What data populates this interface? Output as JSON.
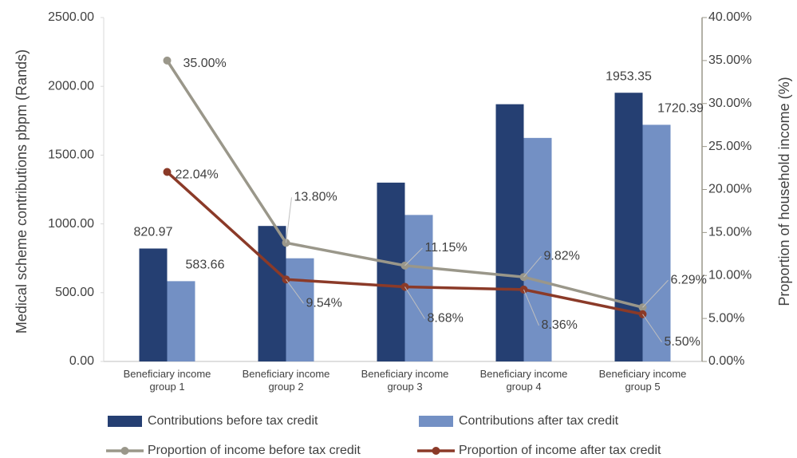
{
  "chart_data": {
    "type": "bar_line",
    "categories": [
      "Beneficiary income group 1",
      "Beneficiary income group 2",
      "Beneficiary income group 3",
      "Beneficiary income group 4",
      "Beneficiary income group 5"
    ],
    "y_label": "Medical scheme contributions pbpm (Rands)",
    "y2_label": "Proportion of household income (%)",
    "ylim": [
      0,
      2500
    ],
    "yticks": [
      {
        "value": 0,
        "label": "0.00"
      },
      {
        "value": 500,
        "label": "500.00"
      },
      {
        "value": 1000,
        "label": "1000.00"
      },
      {
        "value": 1500,
        "label": "1500.00"
      },
      {
        "value": 2000,
        "label": "2000.00"
      },
      {
        "value": 2500,
        "label": "2500.00"
      }
    ],
    "y2lim": [
      0,
      40
    ],
    "y2ticks": [
      {
        "value": 0,
        "label": "0.00%"
      },
      {
        "value": 5,
        "label": "5.00%"
      },
      {
        "value": 10,
        "label": "10.00%"
      },
      {
        "value": 15,
        "label": "15.00%"
      },
      {
        "value": 20,
        "label": "20.00%"
      },
      {
        "value": 25,
        "label": "25.00%"
      },
      {
        "value": 30,
        "label": "30.00%"
      },
      {
        "value": 35,
        "label": "35.00%"
      },
      {
        "value": 40,
        "label": "40.00%"
      }
    ],
    "series": [
      {
        "name": "Contributions before tax credit",
        "type": "bar",
        "color": "#253f72",
        "values": [
          820.97,
          985,
          1300,
          1870,
          1953.35
        ],
        "value_labels": [
          "820.97",
          null,
          null,
          null,
          "1953.35"
        ]
      },
      {
        "name": "Contributions after tax credit",
        "type": "bar",
        "color": "#7390c4",
        "values": [
          583.66,
          750,
          1065,
          1625,
          1720.39
        ],
        "value_labels": [
          "583.66",
          null,
          null,
          null,
          "1720.39"
        ]
      },
      {
        "name": "Proportion of income before tax credit",
        "type": "line",
        "axis": "y2",
        "color": "#9a978a",
        "values": [
          35,
          13.8,
          11.15,
          9.82,
          6.29
        ],
        "value_labels": [
          "35.00%",
          "13.80%",
          "11.15%",
          "9.82%",
          "6.29%"
        ]
      },
      {
        "name": "Proportion of income after tax credit",
        "type": "line",
        "axis": "y2",
        "color": "#8b3a28",
        "values": [
          22.04,
          9.54,
          8.68,
          8.36,
          5.5
        ],
        "value_labels": [
          "22.04%",
          "9.54%",
          "8.68%",
          "8.36%",
          "5.50%"
        ]
      }
    ]
  }
}
